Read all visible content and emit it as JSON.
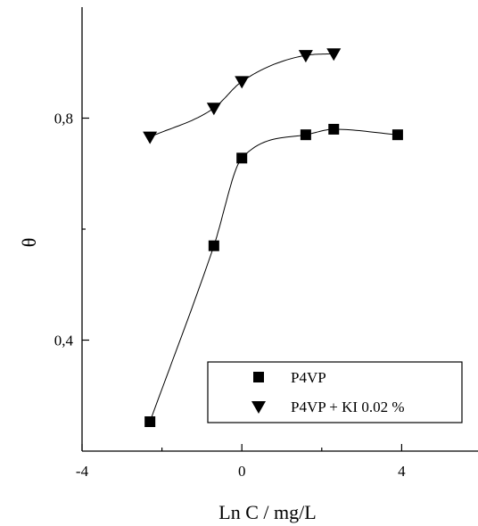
{
  "chart_data": {
    "type": "scatter",
    "title": "",
    "xlabel": "Ln C  / mg/L",
    "ylabel": "θ",
    "xlim": [
      -4,
      6
    ],
    "ylim": [
      0.2,
      1.0
    ],
    "xticks": [
      -4,
      0,
      4
    ],
    "xtick_labels": [
      "-4",
      "0",
      "4"
    ],
    "yticks": [
      0.4,
      0.8
    ],
    "ytick_labels": [
      "0,4",
      "0,8"
    ],
    "grid": false,
    "legend_position": "bottom-right",
    "series": [
      {
        "name": "P4VP",
        "marker": "square",
        "color": "#000000",
        "x": [
          -2.3,
          -0.7,
          0.0,
          1.6,
          2.3,
          3.9
        ],
        "y": [
          0.253,
          0.57,
          0.728,
          0.77,
          0.78,
          0.77
        ],
        "fit": "sigmoid"
      },
      {
        "name": "P4VP + KI 0.02 %",
        "marker": "triangle-down",
        "color": "#000000",
        "x": [
          -2.3,
          -0.7,
          0.0,
          1.6,
          2.3
        ],
        "y": [
          0.766,
          0.818,
          0.866,
          0.913,
          0.916
        ],
        "fit": "sigmoid"
      }
    ]
  }
}
